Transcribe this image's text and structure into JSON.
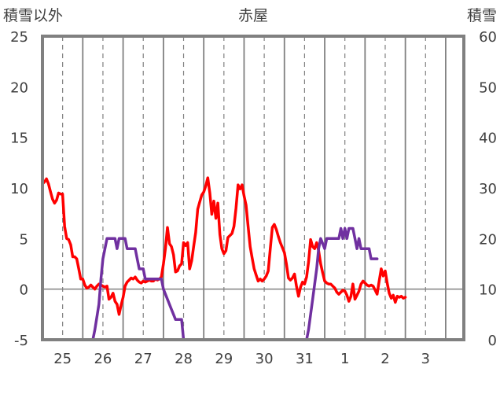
{
  "chart_data": {
    "type": "line",
    "title": "赤屋",
    "y_left_label": "積雪以外",
    "y_right_label": "積雪",
    "y_left_range": [
      -5,
      25
    ],
    "y_left_ticks": [
      "-5",
      "0",
      "5",
      "10",
      "15",
      "20",
      "25"
    ],
    "y_right_range": [
      0,
      60
    ],
    "y_right_ticks": [
      "0",
      "10",
      "20",
      "30",
      "40",
      "50",
      "60"
    ],
    "x_range": [
      0,
      10.45
    ],
    "x_tick_labels": [
      "25",
      "26",
      "27",
      "28",
      "29",
      "30",
      "31",
      "1",
      "2",
      "3"
    ],
    "x_tick_positions": [
      0.5,
      1.5,
      2.5,
      3.5,
      4.5,
      5.5,
      6.5,
      7.5,
      8.5,
      9.5
    ],
    "grid": "vertical lines at day boundaries (solid) and mid-day (dashed)",
    "colors": {
      "temperature": "#ff0000",
      "snow": "#7030a0",
      "axis": "#808080",
      "grid": "#808080",
      "frame": "#808080"
    },
    "series": [
      {
        "axis": "left",
        "color": "#ff0000",
        "points": [
          [
            0.0,
            10.4
          ],
          [
            0.05,
            10.6
          ],
          [
            0.1,
            10.9
          ],
          [
            0.15,
            10.4
          ],
          [
            0.2,
            9.6
          ],
          [
            0.25,
            8.9
          ],
          [
            0.3,
            8.5
          ],
          [
            0.35,
            8.8
          ],
          [
            0.4,
            9.5
          ],
          [
            0.45,
            9.4
          ],
          [
            0.5,
            9.4
          ],
          [
            0.55,
            6.2
          ],
          [
            0.6,
            5.0
          ],
          [
            0.65,
            4.9
          ],
          [
            0.7,
            4.4
          ],
          [
            0.75,
            3.2
          ],
          [
            0.8,
            3.2
          ],
          [
            0.85,
            3.0
          ],
          [
            0.9,
            2.0
          ],
          [
            0.95,
            1.0
          ],
          [
            1.0,
            1.0
          ],
          [
            1.05,
            0.4
          ],
          [
            1.1,
            0.1
          ],
          [
            1.15,
            0.2
          ],
          [
            1.2,
            0.4
          ],
          [
            1.25,
            0.2
          ],
          [
            1.3,
            0.0
          ],
          [
            1.35,
            0.3
          ],
          [
            1.4,
            0.5
          ],
          [
            1.45,
            0.4
          ],
          [
            1.5,
            0.3
          ],
          [
            1.55,
            0.2
          ],
          [
            1.6,
            0.3
          ],
          [
            1.65,
            -1.0
          ],
          [
            1.7,
            -0.8
          ],
          [
            1.75,
            -0.4
          ],
          [
            1.8,
            -1.2
          ],
          [
            1.85,
            -1.5
          ],
          [
            1.9,
            -2.5
          ],
          [
            1.95,
            -1.6
          ],
          [
            2.0,
            -0.8
          ],
          [
            2.05,
            0.3
          ],
          [
            2.1,
            0.7
          ],
          [
            2.15,
            0.9
          ],
          [
            2.2,
            1.1
          ],
          [
            2.25,
            1.0
          ],
          [
            2.3,
            1.2
          ],
          [
            2.35,
            0.9
          ],
          [
            2.4,
            0.7
          ],
          [
            2.45,
            0.6
          ],
          [
            2.5,
            0.8
          ],
          [
            2.55,
            0.7
          ],
          [
            2.6,
            0.8
          ],
          [
            2.65,
            0.9
          ],
          [
            2.7,
            0.8
          ],
          [
            2.75,
            0.8
          ],
          [
            2.8,
            1.0
          ],
          [
            2.85,
            0.9
          ],
          [
            2.9,
            1.0
          ],
          [
            2.95,
            1.2
          ],
          [
            3.0,
            2.5
          ],
          [
            3.05,
            4.0
          ],
          [
            3.1,
            6.1
          ],
          [
            3.15,
            4.5
          ],
          [
            3.2,
            4.2
          ],
          [
            3.25,
            3.4
          ],
          [
            3.3,
            1.7
          ],
          [
            3.35,
            1.8
          ],
          [
            3.4,
            2.3
          ],
          [
            3.45,
            2.5
          ],
          [
            3.5,
            4.6
          ],
          [
            3.55,
            4.3
          ],
          [
            3.6,
            4.6
          ],
          [
            3.65,
            2.0
          ],
          [
            3.7,
            2.8
          ],
          [
            3.75,
            4.2
          ],
          [
            3.8,
            5.6
          ],
          [
            3.85,
            7.9
          ],
          [
            3.9,
            8.6
          ],
          [
            3.95,
            9.3
          ],
          [
            4.0,
            9.6
          ],
          [
            4.05,
            10.2
          ],
          [
            4.1,
            11.0
          ],
          [
            4.15,
            9.5
          ],
          [
            4.2,
            7.4
          ],
          [
            4.25,
            8.7
          ],
          [
            4.3,
            7.0
          ],
          [
            4.35,
            8.5
          ],
          [
            4.4,
            5.4
          ],
          [
            4.45,
            4.0
          ],
          [
            4.5,
            3.5
          ],
          [
            4.55,
            3.8
          ],
          [
            4.6,
            5.1
          ],
          [
            4.65,
            5.3
          ],
          [
            4.7,
            5.5
          ],
          [
            4.75,
            6.2
          ],
          [
            4.8,
            8.0
          ],
          [
            4.85,
            10.3
          ],
          [
            4.9,
            9.9
          ],
          [
            4.95,
            10.3
          ],
          [
            5.0,
            9.2
          ],
          [
            5.05,
            8.3
          ],
          [
            5.1,
            6.2
          ],
          [
            5.15,
            4.2
          ],
          [
            5.2,
            3.1
          ],
          [
            5.25,
            2.0
          ],
          [
            5.3,
            1.4
          ],
          [
            5.35,
            0.8
          ],
          [
            5.4,
            1.0
          ],
          [
            5.45,
            0.8
          ],
          [
            5.5,
            1.0
          ],
          [
            5.55,
            1.3
          ],
          [
            5.6,
            1.8
          ],
          [
            5.65,
            4.0
          ],
          [
            5.7,
            6.1
          ],
          [
            5.75,
            6.4
          ],
          [
            5.8,
            5.9
          ],
          [
            5.85,
            5.2
          ],
          [
            5.9,
            4.6
          ],
          [
            5.95,
            4.1
          ],
          [
            6.0,
            3.6
          ],
          [
            6.05,
            2.5
          ],
          [
            6.1,
            1.1
          ],
          [
            6.15,
            0.9
          ],
          [
            6.2,
            1.1
          ],
          [
            6.25,
            1.5
          ],
          [
            6.3,
            0.3
          ],
          [
            6.35,
            -0.7
          ],
          [
            6.4,
            0.2
          ],
          [
            6.45,
            0.7
          ],
          [
            6.5,
            0.5
          ],
          [
            6.55,
            1.2
          ],
          [
            6.6,
            2.7
          ],
          [
            6.65,
            4.9
          ],
          [
            6.7,
            4.2
          ],
          [
            6.75,
            4.0
          ],
          [
            6.8,
            4.6
          ],
          [
            6.85,
            3.8
          ],
          [
            6.9,
            2.5
          ],
          [
            6.95,
            1.6
          ],
          [
            7.0,
            0.8
          ],
          [
            7.05,
            0.6
          ],
          [
            7.1,
            0.5
          ],
          [
            7.15,
            0.5
          ],
          [
            7.2,
            0.3
          ],
          [
            7.25,
            0.1
          ],
          [
            7.3,
            -0.3
          ],
          [
            7.35,
            -0.5
          ],
          [
            7.4,
            -0.3
          ],
          [
            7.45,
            -0.1
          ],
          [
            7.5,
            -0.2
          ],
          [
            7.55,
            -0.6
          ],
          [
            7.6,
            -1.2
          ],
          [
            7.65,
            -0.7
          ],
          [
            7.7,
            0.5
          ],
          [
            7.75,
            -1.0
          ],
          [
            7.8,
            -0.6
          ],
          [
            7.85,
            -0.2
          ],
          [
            7.9,
            0.5
          ],
          [
            7.95,
            0.8
          ],
          [
            8.0,
            0.6
          ],
          [
            8.05,
            0.4
          ],
          [
            8.1,
            0.3
          ],
          [
            8.15,
            0.4
          ],
          [
            8.2,
            0.3
          ],
          [
            8.25,
            -0.1
          ],
          [
            8.3,
            -0.5
          ],
          [
            8.35,
            0.8
          ],
          [
            8.4,
            2.0
          ],
          [
            8.45,
            1.3
          ],
          [
            8.5,
            1.8
          ],
          [
            8.55,
            0.6
          ],
          [
            8.6,
            -0.4
          ],
          [
            8.65,
            -0.9
          ],
          [
            8.7,
            -0.6
          ],
          [
            8.75,
            -1.3
          ],
          [
            8.8,
            -0.7
          ],
          [
            8.85,
            -0.8
          ],
          [
            8.9,
            -0.7
          ],
          [
            8.95,
            -0.9
          ],
          [
            9.0,
            -0.8
          ]
        ]
      },
      {
        "axis": "right",
        "color": "#7030a0",
        "points": [
          [
            0.0,
            0
          ],
          [
            0.95,
            0
          ],
          [
            1.25,
            0
          ],
          [
            1.3,
            2
          ],
          [
            1.4,
            7
          ],
          [
            1.45,
            12
          ],
          [
            1.5,
            16
          ],
          [
            1.6,
            20
          ],
          [
            1.8,
            20
          ],
          [
            1.85,
            18
          ],
          [
            1.9,
            20
          ],
          [
            2.05,
            20
          ],
          [
            2.1,
            18
          ],
          [
            2.3,
            18
          ],
          [
            2.35,
            16
          ],
          [
            2.4,
            14
          ],
          [
            2.5,
            14
          ],
          [
            2.55,
            12
          ],
          [
            2.95,
            12
          ],
          [
            3.0,
            10
          ],
          [
            3.1,
            8
          ],
          [
            3.2,
            6
          ],
          [
            3.3,
            4
          ],
          [
            3.45,
            4
          ],
          [
            3.5,
            0
          ],
          [
            6.55,
            0
          ],
          [
            6.6,
            2
          ],
          [
            6.7,
            8
          ],
          [
            6.8,
            14
          ],
          [
            6.85,
            18
          ],
          [
            6.9,
            20
          ],
          [
            7.0,
            18
          ],
          [
            7.05,
            20
          ],
          [
            7.35,
            20
          ],
          [
            7.4,
            22
          ],
          [
            7.45,
            20
          ],
          [
            7.5,
            22
          ],
          [
            7.55,
            20
          ],
          [
            7.6,
            22
          ],
          [
            7.7,
            22
          ],
          [
            7.75,
            20
          ],
          [
            7.8,
            18
          ],
          [
            7.85,
            20
          ],
          [
            7.9,
            18
          ],
          [
            8.1,
            18
          ],
          [
            8.15,
            16
          ],
          [
            8.3,
            16
          ]
        ]
      }
    ]
  }
}
